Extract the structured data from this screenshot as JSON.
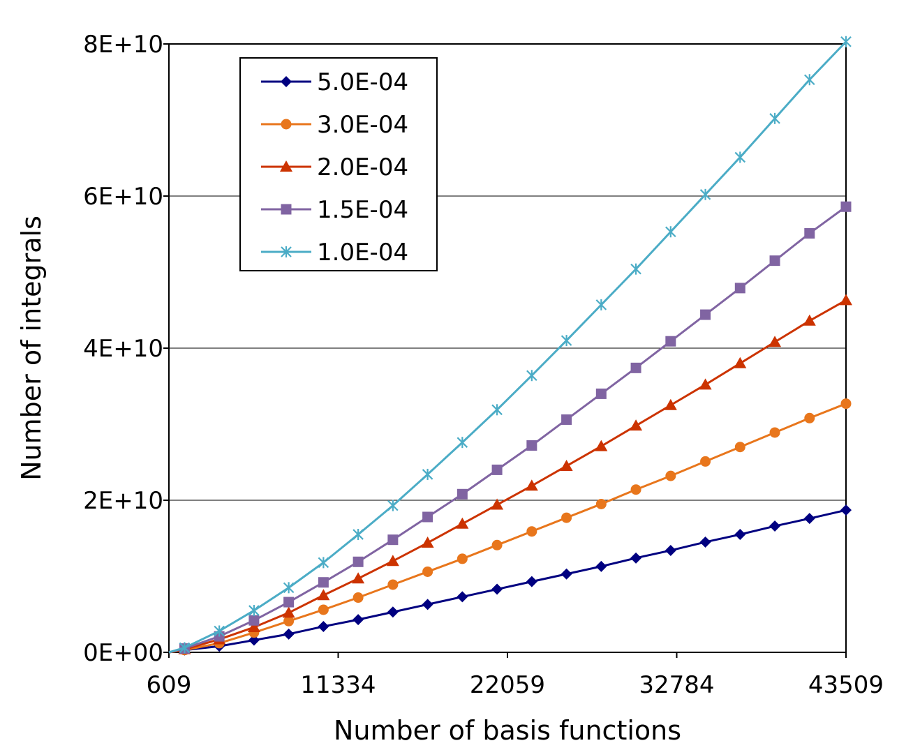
{
  "chart_data": {
    "type": "line",
    "title": "",
    "xlabel": "Number of basis functions",
    "ylabel": "Number of integrals",
    "xlim": [
      609,
      43509
    ],
    "ylim": [
      0,
      80000000000
    ],
    "x_ticks": [
      609,
      11334,
      22059,
      32784,
      43509
    ],
    "x_tick_labels": [
      "609",
      "11334",
      "22059",
      "32784",
      "43509"
    ],
    "y_ticks": [
      0,
      20000000000,
      40000000000,
      60000000000,
      80000000000
    ],
    "y_tick_labels": [
      "0E+00",
      "2E+10",
      "4E+10",
      "6E+10",
      "8E+10"
    ],
    "grid": "horizontal",
    "legend_position": "top-left",
    "x": [
      1600,
      3800,
      6000,
      8200,
      10400,
      12600,
      14800,
      17000,
      19200,
      21400,
      23600,
      25800,
      28000,
      30200,
      32400,
      34600,
      36800,
      39000,
      41200,
      43509
    ],
    "series": [
      {
        "name": "5.0E-04",
        "color": "#000080",
        "marker": "diamond",
        "values": [
          300000000,
          800000000,
          1600000000,
          2400000000,
          3400000000,
          4300000000,
          5300000000,
          6300000000,
          7300000000,
          8300000000,
          9300000000,
          10300000000,
          11300000000,
          12400000000,
          13400000000,
          14500000000,
          15500000000,
          16600000000,
          17600000000,
          18700000000
        ]
      },
      {
        "name": "3.0E-04",
        "color": "#e8761c",
        "marker": "circle",
        "values": [
          300000000,
          1200000000,
          2600000000,
          4100000000,
          5600000000,
          7200000000,
          8900000000,
          10600000000,
          12300000000,
          14100000000,
          15900000000,
          17700000000,
          19500000000,
          21400000000,
          23200000000,
          25100000000,
          27000000000,
          28900000000,
          30800000000,
          32700000000
        ]
      },
      {
        "name": "2.0E-04",
        "color": "#cc3300",
        "marker": "triangle",
        "values": [
          400000000,
          1700000000,
          3300000000,
          5200000000,
          7500000000,
          9700000000,
          12000000000,
          14400000000,
          16900000000,
          19400000000,
          21900000000,
          24500000000,
          27100000000,
          29800000000,
          32500000000,
          35200000000,
          38000000000,
          40800000000,
          43600000000,
          46300000000
        ]
      },
      {
        "name": "1.5E-04",
        "color": "#8064a2",
        "marker": "square",
        "values": [
          500000000,
          2100000000,
          4200000000,
          6600000000,
          9200000000,
          11900000000,
          14800000000,
          17800000000,
          20800000000,
          24000000000,
          27200000000,
          30600000000,
          34000000000,
          37400000000,
          40900000000,
          44400000000,
          47900000000,
          51500000000,
          55100000000,
          58600000000
        ]
      },
      {
        "name": "1.0E-04",
        "color": "#4bacc6",
        "marker": "star",
        "values": [
          600000000,
          2800000000,
          5500000000,
          8500000000,
          11800000000,
          15500000000,
          19300000000,
          23400000000,
          27600000000,
          31900000000,
          36400000000,
          41000000000,
          45700000000,
          50400000000,
          55300000000,
          60200000000,
          65100000000,
          70200000000,
          75300000000,
          80300000000
        ]
      }
    ]
  }
}
